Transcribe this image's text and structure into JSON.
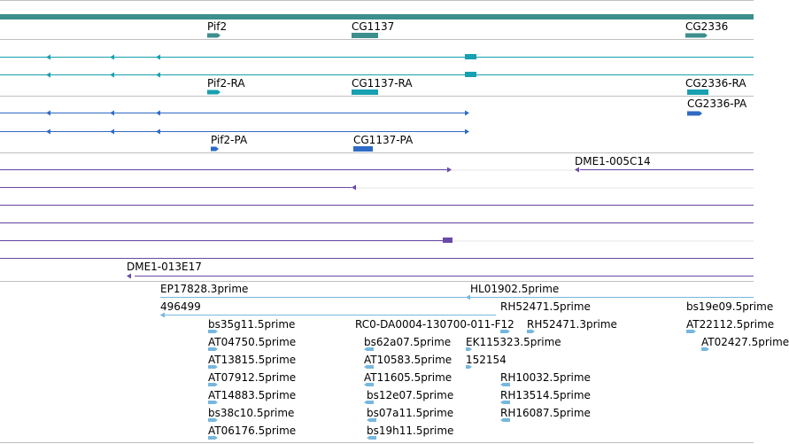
{
  "colors": {
    "gene": "#3c8f8c",
    "mrna": "#17a0b0",
    "protein": "#2f6bc4",
    "clone": "#6a4aa8",
    "est": "#77b7dd",
    "separator": "#bfbfbf"
  },
  "tracks": {
    "genes": [
      {
        "name": "Pif2"
      },
      {
        "name": "CG1137"
      },
      {
        "name": "CG2336"
      }
    ],
    "transcripts": [
      {
        "name": "Pif2-RA"
      },
      {
        "name": "CG1137-RA"
      },
      {
        "name": "CG2336-RA"
      }
    ],
    "proteins": [
      {
        "name": "CG2336-PA"
      },
      {
        "name": "Pif2-PA"
      },
      {
        "name": "CG1137-PA"
      }
    ],
    "clones": [
      {
        "name": "DME1-005C14"
      },
      {
        "name": "DME1-013E17"
      }
    ],
    "ests": [
      {
        "name": "EP17828.3prime"
      },
      {
        "name": "HL01902.5prime"
      },
      {
        "name": "496499"
      },
      {
        "name": "RH52471.5prime"
      },
      {
        "name": "bs19e09.5prime"
      },
      {
        "name": "bs35g11.5prime"
      },
      {
        "name": "RC0-DA0004-130700-011-F12"
      },
      {
        "name": "RH52471.3prime"
      },
      {
        "name": "AT22112.5prime"
      },
      {
        "name": "AT04750.5prime"
      },
      {
        "name": "bs62a07.5prime"
      },
      {
        "name": "EK115323.5prime"
      },
      {
        "name": "AT02427.5prime"
      },
      {
        "name": "AT13815.5prime"
      },
      {
        "name": "AT10583.5prime"
      },
      {
        "name": "152154"
      },
      {
        "name": "AT07912.5prime"
      },
      {
        "name": "AT11605.5prime"
      },
      {
        "name": "RH10032.5prime"
      },
      {
        "name": "AT14883.5prime"
      },
      {
        "name": "bs12e07.5prime"
      },
      {
        "name": "RH13514.5prime"
      },
      {
        "name": "bs38c10.5prime"
      },
      {
        "name": "bs07a11.5prime"
      },
      {
        "name": "RH16087.5prime"
      },
      {
        "name": "AT06176.5prime"
      },
      {
        "name": "bs19h11.5prime"
      }
    ]
  }
}
